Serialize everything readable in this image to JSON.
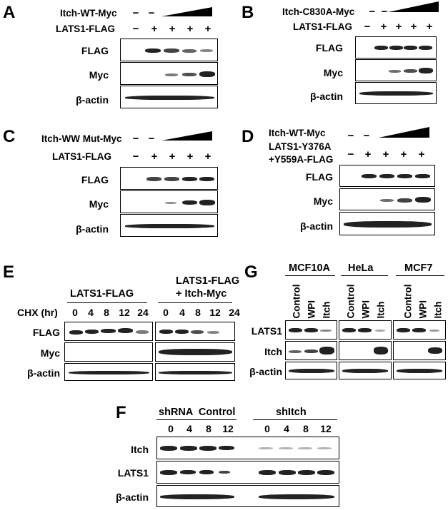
{
  "panels": {
    "A": {
      "letter": "A",
      "construct": "Itch-WT-Myc",
      "lats": "LATS1-FLAG",
      "rows": [
        "FLAG",
        "Myc",
        "β-actin"
      ],
      "signs_top": [
        "−",
        "−"
      ],
      "signs_bottom": [
        "−",
        "+",
        "+",
        "+",
        "+"
      ]
    },
    "B": {
      "letter": "B",
      "construct": "Itch-C830A-Myc",
      "lats": "LATS1-FLAG",
      "rows": [
        "FLAG",
        "Myc",
        "β-actin"
      ],
      "signs_top": [
        "−",
        "−"
      ],
      "signs_bottom": [
        "−",
        "+",
        "+",
        "+",
        "+"
      ]
    },
    "C": {
      "letter": "C",
      "construct": "Itch-WW Mut-Myc",
      "lats": "LATS1-FLAG",
      "rows": [
        "FLAG",
        "Myc",
        "β-actin"
      ],
      "signs_top": [
        "−",
        "−"
      ],
      "signs_bottom": [
        "−",
        "+",
        "+",
        "+",
        "+"
      ]
    },
    "D": {
      "letter": "D",
      "construct": "Itch-WT-Myc",
      "lats_line1": "LATS1-Y376A",
      "lats_line2": "+Y559A-FLAG",
      "rows": [
        "FLAG",
        "Myc",
        "β-actin"
      ],
      "signs_top": [
        "−",
        "−"
      ],
      "signs_bottom": [
        "−",
        "+",
        "+",
        "+",
        "+"
      ]
    },
    "E": {
      "letter": "E",
      "group1": "LATS1-FLAG",
      "group2_line1": "LATS1-FLAG",
      "group2_line2": "+ Itch-Myc",
      "chx_label": "CHX (hr)",
      "timepoints": [
        "0",
        "4",
        "8",
        "12",
        "24"
      ],
      "rows": [
        "FLAG",
        "Myc",
        "β-actin"
      ]
    },
    "F": {
      "letter": "F",
      "group1": "shRNA  Control",
      "group2": "shItch",
      "timepoints": [
        "0",
        "4",
        "8",
        "12"
      ],
      "rows": [
        "Itch",
        "LATS1",
        "β-actin"
      ]
    },
    "G": {
      "letter": "G",
      "cells": [
        "MCF10A",
        "HeLa",
        "MCF7"
      ],
      "lanes": [
        "Control",
        "WPI",
        "Itch"
      ],
      "rows": [
        "LATS1",
        "Itch",
        "β-actin"
      ]
    }
  }
}
